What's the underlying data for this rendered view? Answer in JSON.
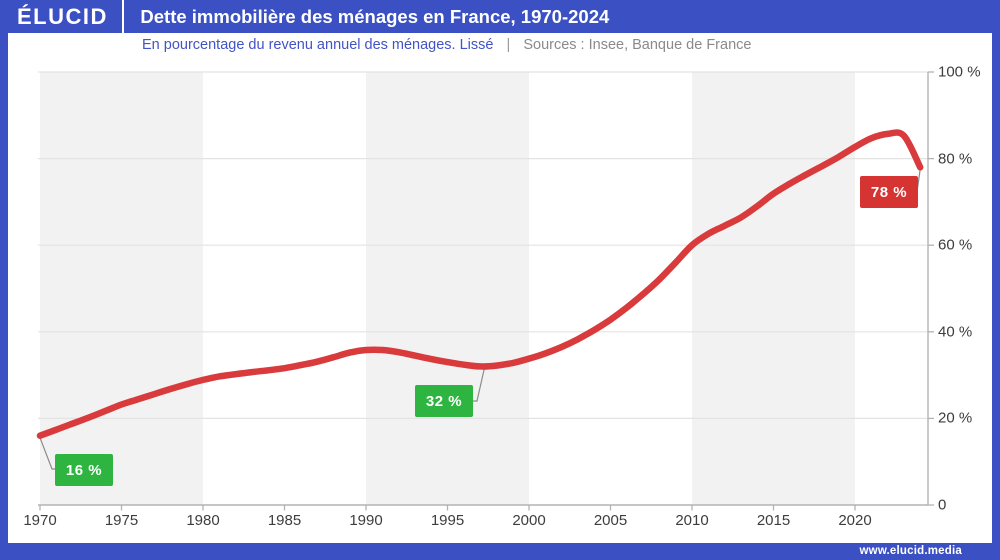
{
  "header": {
    "logo": "ÉLUCID",
    "title": "Dette immobilière des ménages en France, 1970-2024"
  },
  "subtitle": {
    "description": "En pourcentage du revenu annuel des ménages. Lissé",
    "separator": "|",
    "sources": "Sources : Insee, Banque de France"
  },
  "footer": {
    "url": "www.elucid.media"
  },
  "colors": {
    "brand_blue": "#3b50c2",
    "subtitle_blue": "#4353c5",
    "line_red": "#d93a3c",
    "badge_red": "#d63333",
    "badge_green": "#2eb440",
    "band_gray": "#f2f2f2",
    "gridline": "#e3e3e3",
    "axis": "#b3b3b3",
    "connector": "#8c8c8c",
    "tick_text": "#3d3d3d",
    "flag_light_blue": "#8ca0ea"
  },
  "chart_data": {
    "type": "line",
    "title": "Dette immobilière des ménages en France, 1970-2024",
    "subtitle": "En pourcentage du revenu annuel des ménages. Lissé",
    "sources": "Insee, Banque de France",
    "series_name": "Dette immobilière des ménages (% du revenu annuel)",
    "xlabel": "",
    "ylabel": "",
    "xlim": [
      1970,
      2024.5
    ],
    "ylim": [
      0,
      100
    ],
    "grid": "horizontal",
    "legend": "none",
    "x_ticks": [
      1970,
      1975,
      1980,
      1985,
      1990,
      1995,
      2000,
      2005,
      2010,
      2015,
      2020
    ],
    "y_ticks": [
      {
        "label": "100 %",
        "value": 100
      },
      {
        "label": "80 %",
        "value": 80
      },
      {
        "label": "60 %",
        "value": 60
      },
      {
        "label": "40 %",
        "value": 40
      },
      {
        "label": "20 %",
        "value": 20
      },
      {
        "label": "0",
        "value": 0
      }
    ],
    "x_start_year": 1970,
    "x": [
      1970,
      1971,
      1972,
      1973,
      1974,
      1975,
      1976,
      1977,
      1978,
      1979,
      1980,
      1981,
      1982,
      1983,
      1984,
      1985,
      1986,
      1987,
      1988,
      1989,
      1990,
      1991,
      1992,
      1993,
      1994,
      1995,
      1996,
      1997,
      1998,
      1999,
      2000,
      2001,
      2002,
      2003,
      2004,
      2005,
      2006,
      2007,
      2008,
      2009,
      2010,
      2011,
      2012,
      2013,
      2014,
      2015,
      2016,
      2017,
      2018,
      2019,
      2020,
      2021,
      2022,
      2023,
      2024
    ],
    "values": [
      16.0,
      17.4,
      18.8,
      20.2,
      21.7,
      23.2,
      24.4,
      25.6,
      26.8,
      27.9,
      28.9,
      29.7,
      30.2,
      30.7,
      31.1,
      31.6,
      32.3,
      33.1,
      34.1,
      35.2,
      35.8,
      35.8,
      35.3,
      34.5,
      33.7,
      33.0,
      32.4,
      32.0,
      32.2,
      32.8,
      33.8,
      35.0,
      36.5,
      38.3,
      40.4,
      42.8,
      45.6,
      48.7,
      52.1,
      56.0,
      60.0,
      62.6,
      64.5,
      66.4,
      69.0,
      71.9,
      74.2,
      76.3,
      78.3,
      80.4,
      82.7,
      84.7,
      85.7,
      85.3,
      78.0
    ],
    "gray_band_decades": [
      [
        1970,
        1980
      ],
      [
        1990,
        2000
      ],
      [
        2010,
        2020
      ]
    ],
    "annotations": [
      {
        "year": 1970,
        "value": 16,
        "label": "16 %",
        "color": "green"
      },
      {
        "year": 1997,
        "value": 32,
        "label": "32 %",
        "color": "green"
      },
      {
        "year": 2024,
        "value": 78,
        "label": "78 %",
        "color": "red"
      }
    ]
  }
}
